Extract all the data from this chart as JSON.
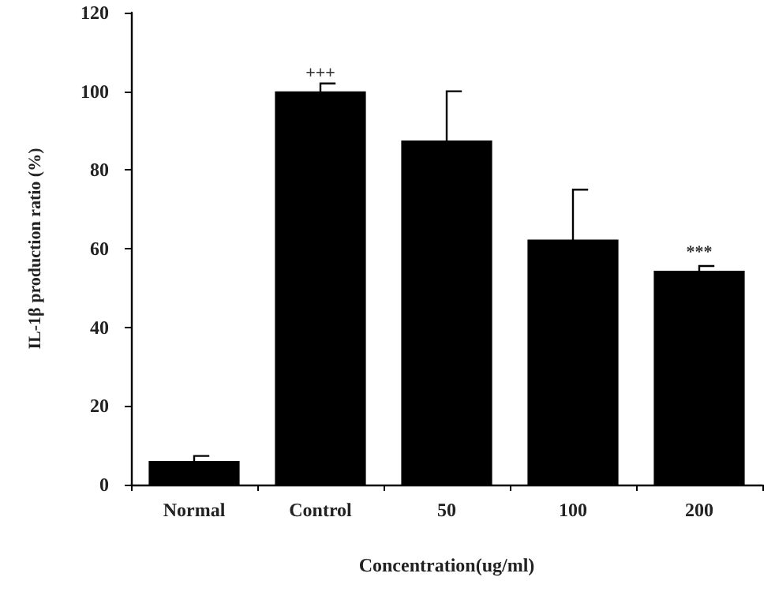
{
  "chart_data": {
    "type": "bar",
    "xlabel": "Concentration(ug/ml)",
    "ylabel": "IL-1β production ratio (%)",
    "categories": [
      "Normal",
      "Control",
      "50",
      "100",
      "200"
    ],
    "values": [
      6,
      100,
      87.5,
      62.3,
      54.4
    ],
    "errors": [
      1.3,
      2,
      12.5,
      12.7,
      1.2
    ],
    "color": "#000000",
    "ylim": [
      0,
      120
    ],
    "yticks": [
      0,
      20,
      40,
      60,
      80,
      100,
      120
    ],
    "grid": false,
    "annotations": [
      {
        "text": "+++",
        "x": "Control",
        "y": 100
      },
      {
        "text": "***",
        "x": "200",
        "y": 54.4
      }
    ]
  }
}
